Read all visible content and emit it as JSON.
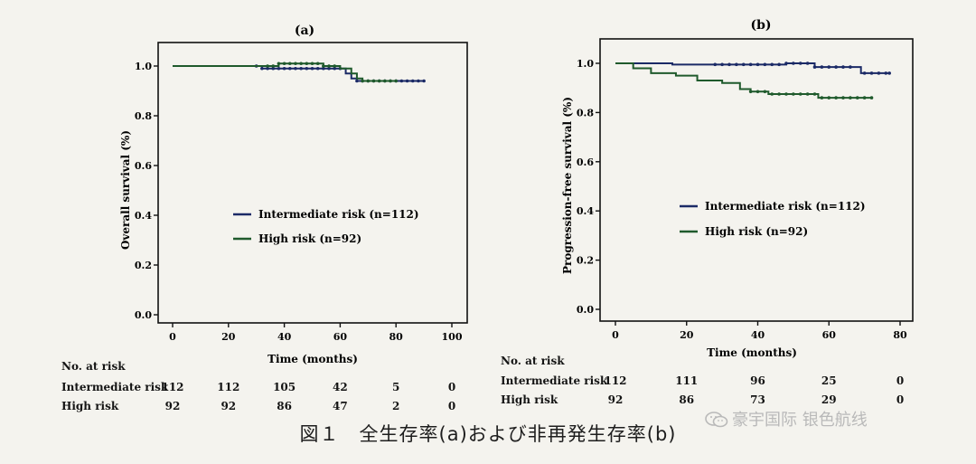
{
  "caption": "図１　全生存率(a)および非再発生存率(b)",
  "watermark": "豪宇国际 银色航线",
  "colors": {
    "intermediate": "#1b2a66",
    "high": "#1f5a2c",
    "axis": "#111111",
    "page": "#f4f3ee"
  },
  "chart_data": [
    {
      "type": "line",
      "panel_label": "(a)",
      "xlabel": "Time (months)",
      "ylabel": "Overall survival (%)",
      "xlim": [
        0,
        100
      ],
      "ylim": [
        0,
        1.0
      ],
      "xticks": [
        0,
        20,
        40,
        60,
        80,
        100
      ],
      "yticks": [
        0.0,
        0.2,
        0.4,
        0.6,
        0.8,
        1.0
      ],
      "ytick_labels": [
        "0.0",
        "0.2",
        "0.4",
        "0.6",
        "0.8",
        "1.0"
      ],
      "grid": false,
      "legend_position": "center",
      "series": [
        {
          "name": "Intermediate risk (n=112)",
          "color_key": "intermediate",
          "step_points": [
            [
              0,
              1.0
            ],
            [
              28,
              1.0
            ],
            [
              32,
              0.99
            ],
            [
              58,
              0.99
            ],
            [
              62,
              0.97
            ],
            [
              64,
              0.95
            ],
            [
              66,
              0.94
            ],
            [
              90,
              0.94
            ]
          ],
          "censor_x": [
            30,
            32,
            34,
            36,
            38,
            40,
            42,
            44,
            46,
            48,
            50,
            52,
            54,
            56,
            58,
            60,
            66,
            68,
            70,
            72,
            74,
            76,
            78,
            80,
            82,
            84,
            86,
            88,
            90
          ]
        },
        {
          "name": "High risk (n=92)",
          "color_key": "high",
          "step_points": [
            [
              0,
              1.0
            ],
            [
              34,
              1.0
            ],
            [
              38,
              1.01
            ],
            [
              54,
              1.0
            ],
            [
              60,
              0.99
            ],
            [
              64,
              0.97
            ],
            [
              66,
              0.95
            ],
            [
              68,
              0.94
            ],
            [
              80,
              0.94
            ]
          ],
          "censor_x": [
            34,
            36,
            38,
            40,
            42,
            44,
            46,
            48,
            50,
            52,
            54,
            56,
            58,
            68,
            70,
            72,
            74,
            76,
            78,
            80
          ]
        }
      ],
      "risk_table": {
        "title": "No. at risk",
        "times": [
          0,
          20,
          40,
          60,
          80,
          100
        ],
        "rows": [
          {
            "label": "Intermediate risk",
            "values": [
              "112",
              "112",
              "105",
              "42",
              "5",
              "0"
            ]
          },
          {
            "label": "High risk",
            "values": [
              "92",
              "92",
              "86",
              "47",
              "2",
              "0"
            ]
          }
        ]
      }
    },
    {
      "type": "line",
      "panel_label": "(b)",
      "xlabel": "Time (months)",
      "ylabel": "Progression-free survival (%)",
      "xlim": [
        0,
        80
      ],
      "ylim": [
        0,
        1.0
      ],
      "xticks": [
        0,
        20,
        40,
        60,
        80
      ],
      "yticks": [
        0.0,
        0.2,
        0.4,
        0.6,
        0.8,
        1.0
      ],
      "ytick_labels": [
        "0.0",
        "0.2",
        "0.4",
        "0.6",
        "0.8",
        "1.0"
      ],
      "grid": false,
      "legend_position": "center-right",
      "series": [
        {
          "name": "Intermediate risk (n=112)",
          "color_key": "intermediate",
          "step_points": [
            [
              0,
              1.0
            ],
            [
              13,
              1.0
            ],
            [
              16,
              0.995
            ],
            [
              42,
              0.995
            ],
            [
              48,
              1.0
            ],
            [
              55,
              1.0
            ],
            [
              56,
              0.985
            ],
            [
              66,
              0.985
            ],
            [
              69,
              0.96
            ],
            [
              77,
              0.96
            ]
          ],
          "censor_x": [
            28,
            30,
            32,
            34,
            36,
            38,
            40,
            42,
            44,
            46,
            48,
            50,
            52,
            54,
            56,
            58,
            60,
            62,
            64,
            66,
            70,
            72,
            74,
            76,
            77
          ]
        },
        {
          "name": "High risk (n=92)",
          "color_key": "high",
          "step_points": [
            [
              0,
              1.0
            ],
            [
              5,
              0.98
            ],
            [
              10,
              0.96
            ],
            [
              17,
              0.95
            ],
            [
              23,
              0.93
            ],
            [
              30,
              0.92
            ],
            [
              35,
              0.895
            ],
            [
              38,
              0.885
            ],
            [
              43,
              0.875
            ],
            [
              55,
              0.875
            ],
            [
              57,
              0.86
            ],
            [
              72,
              0.86
            ]
          ],
          "censor_x": [
            38,
            40,
            42,
            44,
            46,
            48,
            50,
            52,
            54,
            56,
            58,
            60,
            62,
            64,
            66,
            68,
            70,
            72
          ]
        }
      ],
      "risk_table": {
        "title": "No. at risk",
        "times": [
          0,
          20,
          40,
          60,
          80
        ],
        "rows": [
          {
            "label": "Intermediate risk",
            "values": [
              "112",
              "111",
              "96",
              "25",
              "0"
            ]
          },
          {
            "label": "High risk",
            "values": [
              "92",
              "86",
              "73",
              "29",
              "0"
            ]
          }
        ]
      }
    }
  ]
}
